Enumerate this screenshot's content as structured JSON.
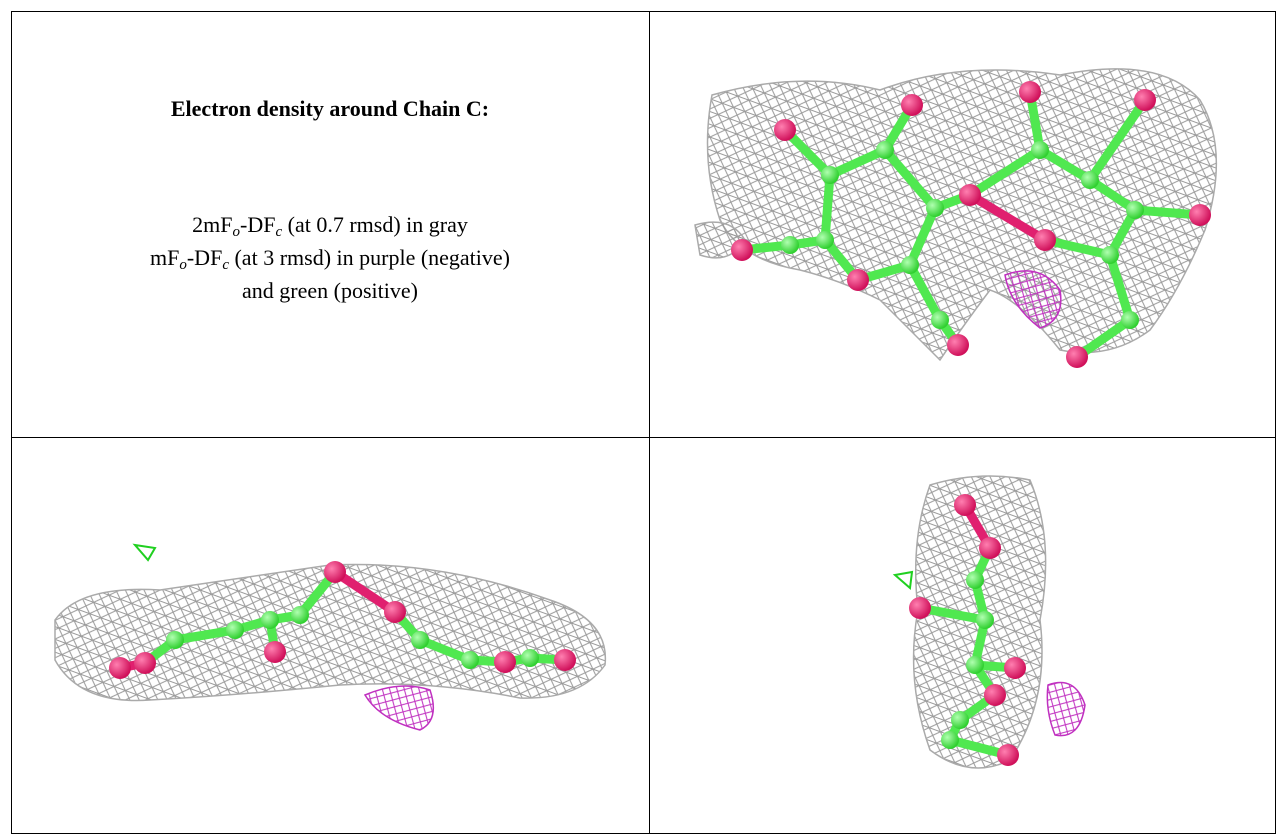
{
  "caption": {
    "title": "Electron density around Chain C:",
    "lines": [
      {
        "parts": [
          "2mF",
          "o",
          "-DF",
          "c",
          " (at 0.7 rmsd) in gray"
        ]
      },
      {
        "parts": [
          "mF",
          "o",
          "-DF",
          "c",
          " (at 3 rmsd) in purple (negative)"
        ]
      },
      {
        "parts": [
          "and green (positive)"
        ]
      }
    ]
  }
}
